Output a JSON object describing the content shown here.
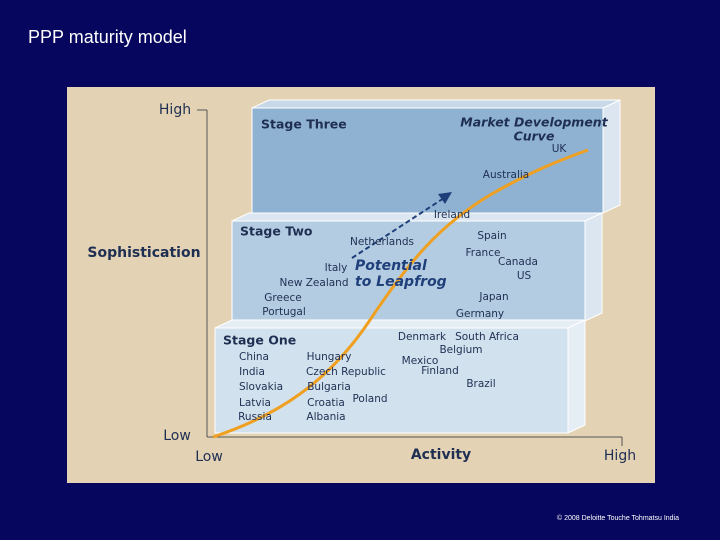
{
  "title": "PPP maturity model",
  "footer": "© 2008 Deloitte Touche Tohmatsu India",
  "diagram": {
    "y_axis": {
      "label": "Sophistication",
      "high": "High",
      "low": "Low"
    },
    "x_axis": {
      "label": "Activity",
      "low": "Low",
      "high": "High"
    },
    "curve_label": [
      "Market Development",
      "Curve"
    ],
    "leapfrog_label": [
      "Potential",
      "to Leapfrog"
    ],
    "stages": [
      {
        "label": "Stage Three",
        "countries": [
          "UK",
          "Australia"
        ]
      },
      {
        "label": "Stage Two",
        "countries": [
          "Ireland",
          "Netherlands",
          "Spain",
          "France",
          "Canada",
          "US",
          "Italy",
          "New Zealand",
          "Japan",
          "Greece",
          "Portugal",
          "Germany"
        ]
      },
      {
        "label": "Stage One",
        "countries": [
          "China",
          "India",
          "Slovakia",
          "Latvia",
          "Russia",
          "Hungary",
          "Czech Republic",
          "Bulgaria",
          "Croatia",
          "Albania",
          "Poland",
          "Denmark",
          "South Africa",
          "Belgium",
          "Mexico",
          "Finland",
          "Brazil"
        ]
      }
    ]
  }
}
